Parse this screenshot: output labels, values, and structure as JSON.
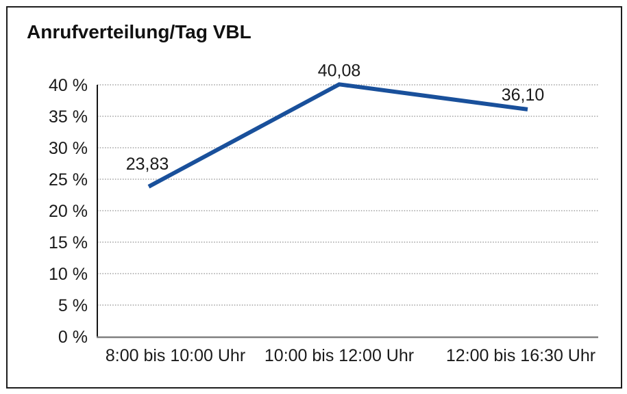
{
  "chart_data": {
    "type": "line",
    "title": "Anrufverteilung/Tag VBL",
    "categories": [
      "8:00 bis 10:00 Uhr",
      "10:00 bis 12:00 Uhr",
      "12:00 bis 16:30 Uhr"
    ],
    "values": [
      23.83,
      40.08,
      36.1
    ],
    "value_labels": [
      "23,83",
      "40,08",
      "36,10"
    ],
    "xlabel": "",
    "ylabel": "",
    "ylim": [
      0,
      40
    ],
    "ytick_step": 5,
    "ytick_suffix": " %",
    "yticks": [
      "0 %",
      "5 %",
      "10 %",
      "15 %",
      "20 %",
      "25 %",
      "30 %",
      "35 %",
      "40 %"
    ],
    "grid": "horizontal-dotted",
    "legend": "none",
    "line_color": "#19509b",
    "text_color": "#1a1a1a",
    "axis_color": "#141414",
    "x_axis_color": "#7f7f7f",
    "border_color": "#1c1c1c"
  }
}
